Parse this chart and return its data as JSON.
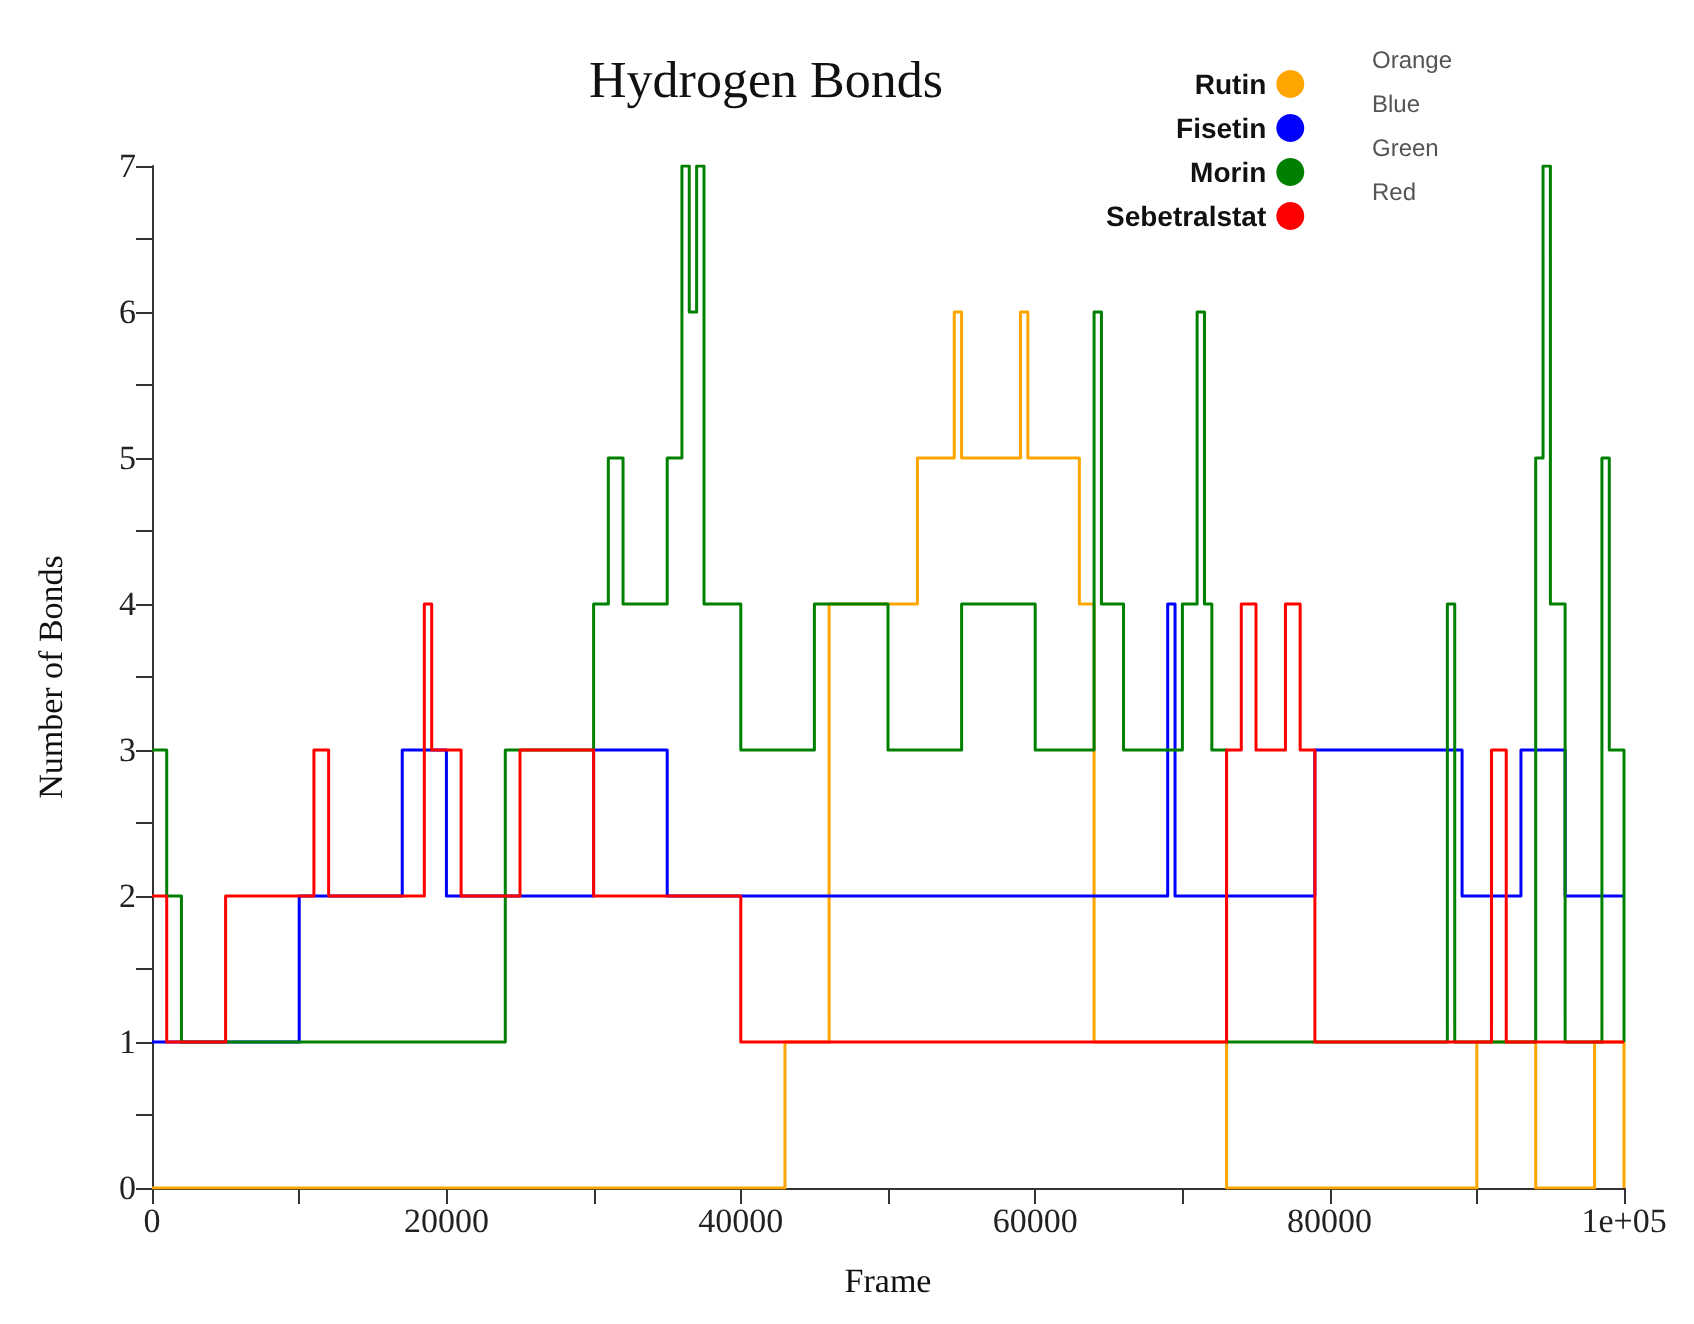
{
  "chart_data": {
    "type": "step",
    "title": "Hydrogen Bonds",
    "xlabel": "Frame",
    "ylabel": "Number of Bonds",
    "xlim": [
      0,
      100000
    ],
    "xticks": [
      0,
      {
        "value": 10000,
        "label": null
      },
      20000,
      {
        "value": 30000,
        "label": null
      },
      40000,
      {
        "value": 50000,
        "label": null
      },
      60000,
      {
        "value": 70000,
        "label": null
      },
      80000,
      {
        "value": 90000,
        "label": null
      },
      {
        "value": 100000,
        "label": "1e+05"
      }
    ],
    "ylim": [
      0,
      7
    ],
    "yticks": [
      0,
      {
        "value": 0.5,
        "label": null
      },
      1,
      {
        "value": 1.5,
        "label": null
      },
      2,
      {
        "value": 2.5,
        "label": null
      },
      3,
      {
        "value": 3.5,
        "label": null
      },
      4,
      {
        "value": 4.5,
        "label": null
      },
      5,
      {
        "value": 5.5,
        "label": null
      },
      6,
      {
        "value": 6.5,
        "label": null
      },
      7
    ],
    "grid": false,
    "legend": "top right",
    "marker": "none",
    "line_style": "solid",
    "annotations": [
      "Orange",
      "Blue",
      "Green",
      "Red"
    ],
    "series": [
      {
        "name": "Rutin",
        "color": "#ffa500",
        "x": [
          0,
          40000,
          43000,
          46000,
          52000,
          54500,
          55000,
          59000,
          59500,
          63000,
          64000,
          73000,
          90000,
          94000,
          98000,
          100000
        ],
        "values": [
          0,
          0,
          1,
          4,
          5,
          6,
          5,
          6,
          5,
          4,
          1,
          0,
          1,
          0,
          1,
          0
        ]
      },
      {
        "name": "Fisetin",
        "color": "#0000ff",
        "x": [
          0,
          10000,
          17000,
          20000,
          30000,
          35000,
          40000,
          50000,
          60000,
          69000,
          69500,
          79000,
          89000,
          93000,
          96000,
          100000
        ],
        "values": [
          1,
          2,
          3,
          2,
          3,
          2,
          2,
          2,
          2,
          4,
          2,
          3,
          2,
          3,
          2,
          2
        ]
      },
      {
        "name": "Morin",
        "color": "#008000",
        "x": [
          0,
          1000,
          2000,
          24000,
          30000,
          31000,
          32000,
          35000,
          36000,
          36500,
          37000,
          37500,
          40000,
          45000,
          50000,
          55000,
          60000,
          64000,
          64500,
          66000,
          70000,
          71000,
          71500,
          72000,
          73000,
          88000,
          88500,
          94000,
          94500,
          95000,
          96000,
          98500,
          99000,
          100000
        ],
        "values": [
          3,
          2,
          1,
          3,
          4,
          5,
          4,
          5,
          7,
          6,
          7,
          4,
          3,
          4,
          3,
          4,
          3,
          6,
          4,
          3,
          4,
          6,
          4,
          3,
          1,
          4,
          1,
          5,
          7,
          4,
          1,
          5,
          3,
          1
        ]
      },
      {
        "name": "Sebetralstat",
        "color": "#ff0000",
        "x": [
          0,
          1000,
          5000,
          11000,
          12000,
          18500,
          19000,
          21000,
          25000,
          30000,
          40000,
          60000,
          73000,
          74000,
          75000,
          77000,
          78000,
          79000,
          91000,
          92000,
          100000
        ],
        "values": [
          2,
          1,
          2,
          3,
          2,
          4,
          3,
          2,
          3,
          2,
          1,
          1,
          3,
          4,
          3,
          4,
          3,
          1,
          3,
          1,
          1
        ]
      }
    ]
  }
}
